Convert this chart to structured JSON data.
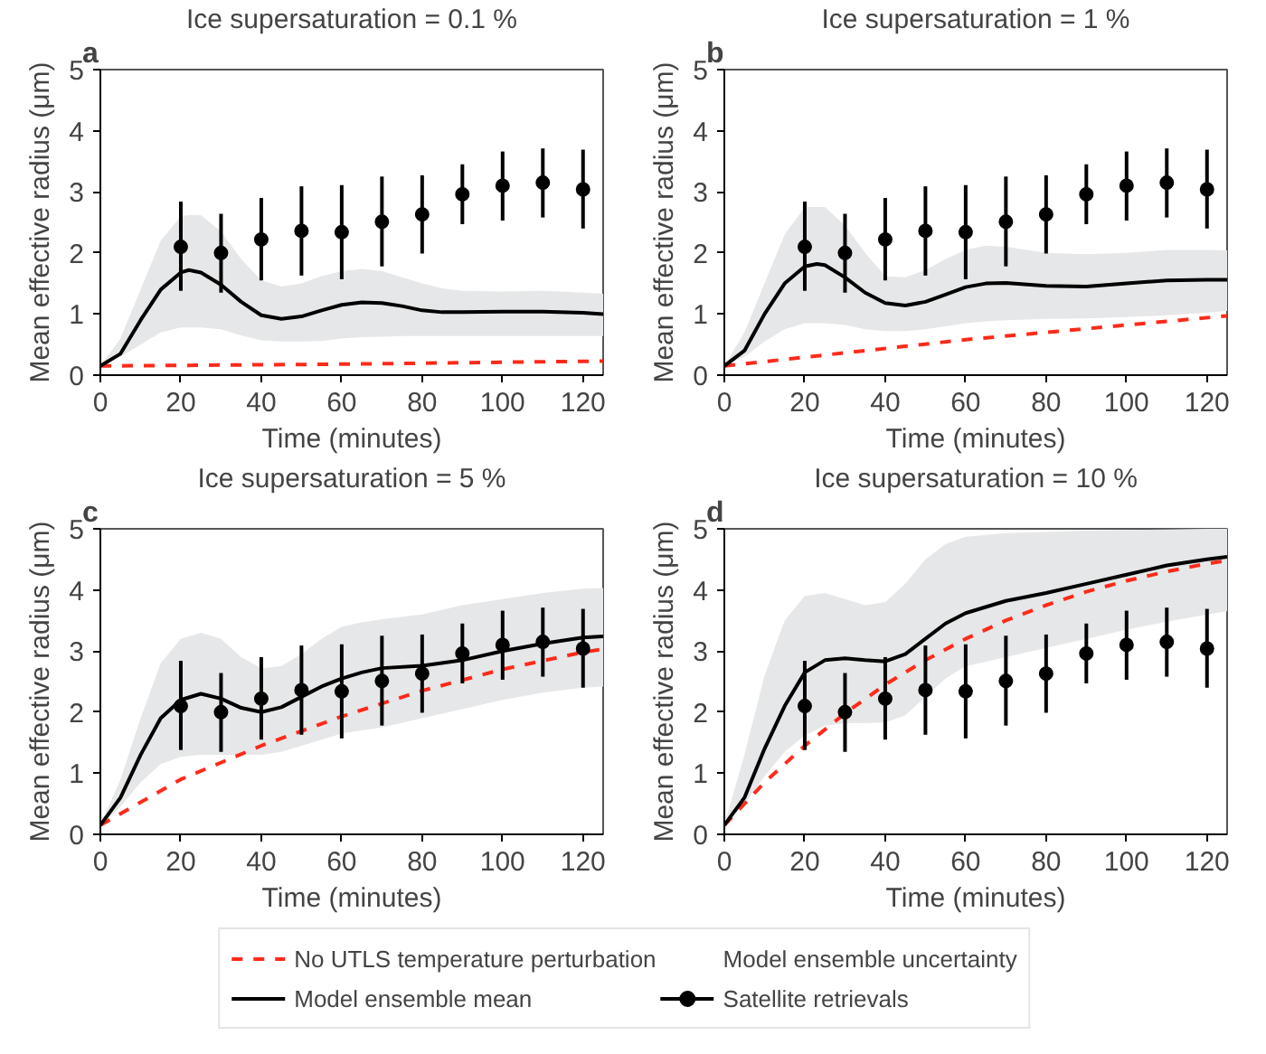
{
  "chart_data": [
    {
      "type": "line",
      "title": "Ice supersaturation = 0.1 %",
      "annotations": [
        "a",
        "Model ensemble uncertainty"
      ],
      "xlabel": "Time (minutes)",
      "ylabel": "Mean effective radius (μm)",
      "xlim": [
        0,
        125
      ],
      "ylim": [
        0,
        5
      ],
      "xticks": [
        0,
        20,
        40,
        60,
        80,
        100,
        120
      ],
      "yticks": [
        0,
        1,
        2,
        3,
        4,
        5
      ],
      "grid": false,
      "legend": "bottom",
      "series": [
        {
          "name": "No UTLS temperature perturbation",
          "color": "#ff2a1a",
          "line_style": "dashed",
          "x": [
            0,
            60,
            125
          ],
          "values": [
            0.15,
            0.18,
            0.23
          ]
        },
        {
          "name": "Model ensemble mean",
          "color": "#000000",
          "line_style": "solid",
          "x": [
            0,
            5,
            10,
            15,
            20,
            22,
            25,
            30,
            35,
            40,
            45,
            50,
            55,
            60,
            65,
            70,
            75,
            80,
            85,
            90,
            100,
            110,
            120,
            125
          ],
          "values": [
            0.15,
            0.35,
            0.9,
            1.4,
            1.68,
            1.72,
            1.68,
            1.48,
            1.2,
            0.98,
            0.92,
            0.96,
            1.06,
            1.15,
            1.19,
            1.18,
            1.13,
            1.06,
            1.03,
            1.03,
            1.04,
            1.04,
            1.02,
            1.0
          ],
          "lower": [
            0.15,
            0.3,
            0.5,
            0.7,
            0.78,
            0.78,
            0.78,
            0.75,
            0.65,
            0.57,
            0.55,
            0.55,
            0.56,
            0.6,
            0.62,
            0.63,
            0.64,
            0.64,
            0.64,
            0.64,
            0.64,
            0.64,
            0.64,
            0.64
          ],
          "upper": [
            0.15,
            0.6,
            1.4,
            2.2,
            2.6,
            2.62,
            2.62,
            2.35,
            1.9,
            1.55,
            1.45,
            1.5,
            1.62,
            1.7,
            1.74,
            1.7,
            1.6,
            1.5,
            1.42,
            1.38,
            1.37,
            1.38,
            1.35,
            1.33
          ]
        },
        {
          "type": "scatter",
          "name": "Satellite retrievals",
          "color": "#000000",
          "marker": "circle",
          "x": [
            20,
            30,
            40,
            50,
            60,
            70,
            80,
            90,
            100,
            110,
            120
          ],
          "values": [
            2.1,
            2.0,
            2.22,
            2.36,
            2.34,
            2.51,
            2.63,
            2.96,
            3.1,
            3.15,
            3.04
          ],
          "errors": [
            [
              1.38,
              2.84
            ],
            [
              1.35,
              2.64
            ],
            [
              1.55,
              2.9
            ],
            [
              1.63,
              3.09
            ],
            [
              1.57,
              3.11
            ],
            [
              1.78,
              3.25
            ],
            [
              1.99,
              3.27
            ],
            [
              2.47,
              3.45
            ],
            [
              2.53,
              3.66
            ],
            [
              2.58,
              3.71
            ],
            [
              2.4,
              3.69
            ]
          ]
        }
      ]
    },
    {
      "type": "line",
      "title": "Ice supersaturation = 1 %",
      "annotations": [
        "b"
      ],
      "xlabel": "Time (minutes)",
      "ylabel": "Mean effective radius (μm)",
      "xlim": [
        0,
        125
      ],
      "ylim": [
        0,
        5
      ],
      "xticks": [
        0,
        20,
        40,
        60,
        80,
        100,
        120
      ],
      "yticks": [
        0,
        1,
        2,
        3,
        4,
        5
      ],
      "grid": false,
      "series": [
        {
          "color": "#ff2a1a",
          "line_style": "dashed",
          "x": [
            0,
            60,
            125
          ],
          "values": [
            0.15,
            0.58,
            0.97
          ]
        },
        {
          "color": "#000000",
          "line_style": "solid",
          "x": [
            0,
            5,
            10,
            15,
            20,
            23,
            25,
            30,
            35,
            40,
            45,
            50,
            55,
            60,
            65,
            70,
            80,
            90,
            100,
            110,
            120,
            125
          ],
          "values": [
            0.15,
            0.4,
            1.0,
            1.5,
            1.78,
            1.82,
            1.8,
            1.6,
            1.35,
            1.18,
            1.14,
            1.2,
            1.32,
            1.44,
            1.5,
            1.51,
            1.46,
            1.45,
            1.5,
            1.55,
            1.56,
            1.56
          ],
          "lower": [
            0.15,
            0.3,
            0.55,
            0.75,
            0.85,
            0.85,
            0.85,
            0.82,
            0.75,
            0.72,
            0.72,
            0.75,
            0.8,
            0.85,
            0.88,
            0.9,
            0.92,
            0.93,
            0.95,
            0.98,
            1.02,
            1.05
          ],
          "upper": [
            0.15,
            0.7,
            1.5,
            2.3,
            2.75,
            2.75,
            2.75,
            2.45,
            2.0,
            1.62,
            1.6,
            1.72,
            1.9,
            2.05,
            2.12,
            2.1,
            2.0,
            1.98,
            2.0,
            2.05,
            2.05,
            2.04
          ]
        },
        {
          "type": "scatter",
          "color": "#000000",
          "marker": "circle",
          "x": [
            20,
            30,
            40,
            50,
            60,
            70,
            80,
            90,
            100,
            110,
            120
          ],
          "values": [
            2.1,
            2.0,
            2.22,
            2.36,
            2.34,
            2.51,
            2.63,
            2.96,
            3.1,
            3.15,
            3.04
          ],
          "errors": [
            [
              1.38,
              2.84
            ],
            [
              1.35,
              2.64
            ],
            [
              1.55,
              2.9
            ],
            [
              1.63,
              3.09
            ],
            [
              1.57,
              3.11
            ],
            [
              1.78,
              3.25
            ],
            [
              1.99,
              3.27
            ],
            [
              2.47,
              3.45
            ],
            [
              2.53,
              3.66
            ],
            [
              2.58,
              3.71
            ],
            [
              2.4,
              3.69
            ]
          ]
        }
      ]
    },
    {
      "type": "line",
      "title": "Ice supersaturation = 5 %",
      "annotations": [
        "c"
      ],
      "xlabel": "Time (minutes)",
      "ylabel": "Mean effective radius (μm)",
      "xlim": [
        0,
        125
      ],
      "ylim": [
        0,
        5
      ],
      "xticks": [
        0,
        20,
        40,
        60,
        80,
        100,
        120
      ],
      "yticks": [
        0,
        1,
        2,
        3,
        4,
        5
      ],
      "grid": false,
      "series": [
        {
          "color": "#ff2a1a",
          "line_style": "dashed",
          "x": [
            0,
            20,
            40,
            60,
            80,
            100,
            120,
            125
          ],
          "values": [
            0.15,
            0.9,
            1.45,
            1.93,
            2.35,
            2.7,
            2.98,
            3.03
          ]
        },
        {
          "color": "#000000",
          "line_style": "solid",
          "x": [
            0,
            5,
            10,
            15,
            20,
            25,
            30,
            35,
            40,
            45,
            50,
            55,
            60,
            65,
            70,
            80,
            90,
            100,
            110,
            120,
            125
          ],
          "values": [
            0.15,
            0.6,
            1.3,
            1.9,
            2.2,
            2.3,
            2.22,
            2.07,
            2.0,
            2.08,
            2.25,
            2.42,
            2.55,
            2.65,
            2.72,
            2.76,
            2.85,
            3.0,
            3.12,
            3.22,
            3.24
          ],
          "lower": [
            0.15,
            0.45,
            0.85,
            1.15,
            1.27,
            1.3,
            1.3,
            1.3,
            1.3,
            1.35,
            1.45,
            1.55,
            1.65,
            1.7,
            1.75,
            1.9,
            2.05,
            2.2,
            2.32,
            2.4,
            2.42
          ],
          "upper": [
            0.15,
            0.9,
            1.9,
            2.8,
            3.2,
            3.3,
            3.2,
            2.9,
            2.72,
            2.75,
            2.95,
            3.2,
            3.4,
            3.47,
            3.52,
            3.6,
            3.75,
            3.85,
            3.95,
            4.02,
            4.03
          ]
        },
        {
          "type": "scatter",
          "color": "#000000",
          "marker": "circle",
          "x": [
            20,
            30,
            40,
            50,
            60,
            70,
            80,
            90,
            100,
            110,
            120
          ],
          "values": [
            2.1,
            2.0,
            2.22,
            2.36,
            2.34,
            2.51,
            2.63,
            2.96,
            3.1,
            3.15,
            3.04
          ],
          "errors": [
            [
              1.38,
              2.84
            ],
            [
              1.35,
              2.64
            ],
            [
              1.55,
              2.9
            ],
            [
              1.63,
              3.09
            ],
            [
              1.57,
              3.11
            ],
            [
              1.78,
              3.25
            ],
            [
              1.99,
              3.27
            ],
            [
              2.47,
              3.45
            ],
            [
              2.53,
              3.66
            ],
            [
              2.58,
              3.71
            ],
            [
              2.4,
              3.69
            ]
          ]
        }
      ]
    },
    {
      "type": "line",
      "title": "Ice supersaturation = 10 %",
      "annotations": [
        "d"
      ],
      "xlabel": "Time (minutes)",
      "ylabel": "Mean effective radius (μm)",
      "xlim": [
        0,
        125
      ],
      "ylim": [
        0,
        5
      ],
      "xticks": [
        0,
        20,
        40,
        60,
        80,
        100,
        120
      ],
      "yticks": [
        0,
        1,
        2,
        3,
        4,
        5
      ],
      "grid": false,
      "series": [
        {
          "color": "#ff2a1a",
          "line_style": "dashed",
          "x": [
            0,
            10,
            20,
            30,
            40,
            50,
            60,
            70,
            80,
            90,
            100,
            110,
            120,
            125
          ],
          "values": [
            0.15,
            0.85,
            1.45,
            1.98,
            2.45,
            2.85,
            3.2,
            3.5,
            3.75,
            3.97,
            4.15,
            4.3,
            4.43,
            4.48
          ]
        },
        {
          "color": "#000000",
          "line_style": "solid",
          "x": [
            0,
            5,
            10,
            15,
            20,
            25,
            30,
            35,
            40,
            45,
            50,
            55,
            60,
            70,
            80,
            90,
            100,
            110,
            120,
            125
          ],
          "values": [
            0.15,
            0.6,
            1.4,
            2.1,
            2.65,
            2.85,
            2.88,
            2.85,
            2.83,
            2.95,
            3.2,
            3.45,
            3.62,
            3.82,
            3.95,
            4.1,
            4.25,
            4.4,
            4.5,
            4.54
          ],
          "lower": [
            0.15,
            0.5,
            0.95,
            1.35,
            1.62,
            1.78,
            1.82,
            1.82,
            1.83,
            1.95,
            2.25,
            2.55,
            2.75,
            2.9,
            3.05,
            3.2,
            3.35,
            3.48,
            3.6,
            3.65
          ],
          "upper": [
            0.15,
            1.3,
            2.6,
            3.5,
            3.9,
            3.95,
            3.85,
            3.75,
            3.8,
            4.1,
            4.5,
            4.75,
            4.87,
            4.93,
            4.95,
            4.97,
            4.98,
            4.99,
            5.0,
            5.0
          ]
        },
        {
          "type": "scatter",
          "color": "#000000",
          "marker": "circle",
          "x": [
            20,
            30,
            40,
            50,
            60,
            70,
            80,
            90,
            100,
            110,
            120
          ],
          "values": [
            2.1,
            2.0,
            2.22,
            2.36,
            2.34,
            2.51,
            2.63,
            2.96,
            3.1,
            3.15,
            3.04
          ],
          "errors": [
            [
              1.38,
              2.84
            ],
            [
              1.35,
              2.64
            ],
            [
              1.55,
              2.9
            ],
            [
              1.63,
              3.09
            ],
            [
              1.57,
              3.11
            ],
            [
              1.78,
              3.25
            ],
            [
              1.99,
              3.27
            ],
            [
              2.47,
              3.45
            ],
            [
              2.53,
              3.66
            ],
            [
              2.58,
              3.71
            ],
            [
              2.4,
              3.69
            ]
          ]
        }
      ]
    }
  ]
}
